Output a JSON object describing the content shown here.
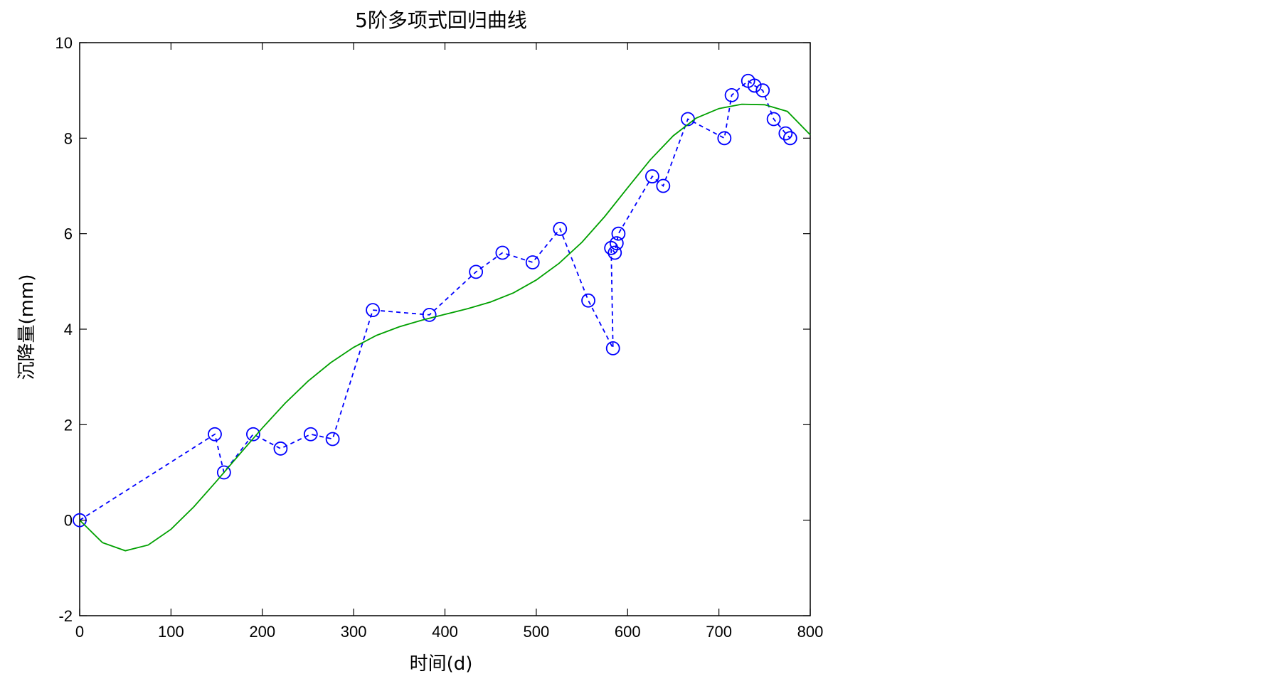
{
  "chart_data": {
    "type": "line",
    "title": "5阶多项式回归曲线",
    "xlabel": "时间(d)",
    "ylabel": "沉降量(mm)",
    "xlim": [
      0,
      800
    ],
    "ylim": [
      -2,
      10
    ],
    "xticks": [
      0,
      100,
      200,
      300,
      400,
      500,
      600,
      700,
      800
    ],
    "yticks": [
      -2,
      0,
      2,
      4,
      6,
      8,
      10
    ],
    "grid": false,
    "series": [
      {
        "style": "dashed-circle-markers",
        "color": "#0000ff",
        "points": [
          [
            0,
            0.0
          ],
          [
            148,
            1.8
          ],
          [
            158,
            1.0
          ],
          [
            190,
            1.8
          ],
          [
            220,
            1.5
          ],
          [
            253,
            1.8
          ],
          [
            277,
            1.7
          ],
          [
            321,
            4.4
          ],
          [
            383,
            4.3
          ],
          [
            434,
            5.2
          ],
          [
            463,
            5.6
          ],
          [
            496,
            5.4
          ],
          [
            526,
            6.1
          ],
          [
            557,
            4.6
          ],
          [
            584,
            3.6
          ],
          [
            582,
            5.7
          ],
          [
            586,
            5.6
          ],
          [
            588,
            5.8
          ],
          [
            590,
            6.0
          ],
          [
            627,
            7.2
          ],
          [
            639,
            7.0
          ],
          [
            666,
            8.4
          ],
          [
            706,
            8.0
          ],
          [
            714,
            8.9
          ],
          [
            732,
            9.2
          ],
          [
            739,
            9.1
          ],
          [
            748,
            9.0
          ],
          [
            760,
            8.4
          ],
          [
            773,
            8.1
          ],
          [
            778,
            8.0
          ]
        ]
      },
      {
        "style": "solid",
        "color": "#00a000",
        "points": [
          [
            0,
            0.0
          ],
          [
            25,
            -0.47
          ],
          [
            50,
            -0.64
          ],
          [
            75,
            -0.52
          ],
          [
            100,
            -0.19
          ],
          [
            125,
            0.28
          ],
          [
            150,
            0.82
          ],
          [
            175,
            1.38
          ],
          [
            200,
            1.93
          ],
          [
            225,
            2.45
          ],
          [
            250,
            2.91
          ],
          [
            275,
            3.3
          ],
          [
            300,
            3.62
          ],
          [
            325,
            3.87
          ],
          [
            350,
            4.05
          ],
          [
            375,
            4.19
          ],
          [
            400,
            4.31
          ],
          [
            425,
            4.43
          ],
          [
            450,
            4.57
          ],
          [
            475,
            4.76
          ],
          [
            500,
            5.03
          ],
          [
            525,
            5.38
          ],
          [
            550,
            5.82
          ],
          [
            575,
            6.36
          ],
          [
            600,
            6.96
          ],
          [
            625,
            7.55
          ],
          [
            650,
            8.05
          ],
          [
            675,
            8.42
          ],
          [
            700,
            8.62
          ],
          [
            725,
            8.71
          ],
          [
            750,
            8.7
          ],
          [
            775,
            8.56
          ],
          [
            800,
            8.07
          ]
        ]
      }
    ]
  }
}
